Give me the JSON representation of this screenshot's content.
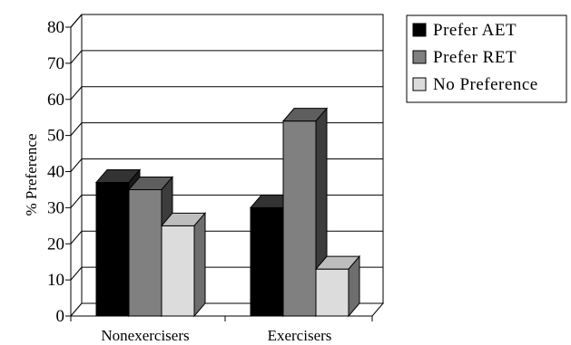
{
  "chart_data": {
    "type": "bar",
    "title": "",
    "xlabel": "",
    "ylabel": "% Preference",
    "ylim": [
      0,
      80
    ],
    "yticks": [
      0,
      10,
      20,
      30,
      40,
      50,
      60,
      70,
      80
    ],
    "categories": [
      "Nonexercisers",
      "Exercisers"
    ],
    "series": [
      {
        "name": "Prefer AET",
        "values": [
          37,
          30
        ],
        "color": "#000000",
        "side_color": "#1a1a1a",
        "top_color": "#333333"
      },
      {
        "name": "Prefer RET",
        "values": [
          35,
          54
        ],
        "color": "#808080",
        "side_color": "#3c3c3c",
        "top_color": "#5e5e5e"
      },
      {
        "name": "No Preference",
        "values": [
          25,
          13
        ],
        "color": "#dcdcdc",
        "side_color": "#6e6e6e",
        "top_color": "#bdbdbd"
      }
    ],
    "grid": true,
    "legend_position": "top-right",
    "style": "3d"
  }
}
